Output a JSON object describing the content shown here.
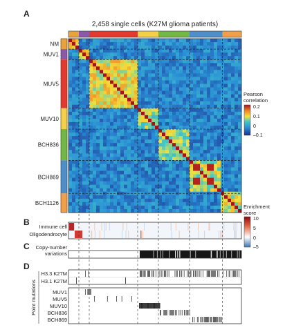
{
  "panels": {
    "a": {
      "letter": "A"
    },
    "b": {
      "letter": "B"
    },
    "c": {
      "letter": "C"
    },
    "d": {
      "letter": "D"
    }
  },
  "heatmap": {
    "title": "2,458 single cells (K27M glioma patients)",
    "rows": [
      {
        "label": "NM",
        "start": 0.0,
        "end": 0.06,
        "color": "#e8a33c"
      },
      {
        "label": "MUV1",
        "start": 0.06,
        "end": 0.12,
        "color": "#8a5aa8"
      },
      {
        "label": "MUV5",
        "start": 0.12,
        "end": 0.4,
        "color": "#e23a2e"
      },
      {
        "label": "MUV10",
        "start": 0.4,
        "end": 0.52,
        "color": "#f2d04a"
      },
      {
        "label": "BCH836",
        "start": 0.52,
        "end": 0.7,
        "color": "#73b844"
      },
      {
        "label": "BCH869",
        "start": 0.7,
        "end": 0.89,
        "color": "#4f8fc9"
      },
      {
        "label": "BCH1126",
        "start": 0.89,
        "end": 1.0,
        "color": "#f0a04a"
      }
    ],
    "colorbar": {
      "title_line1": "Pearson",
      "title_line2": "correlation",
      "ticks": [
        "0.2",
        "0.1",
        "0",
        "–0.1"
      ],
      "range": [
        -0.1,
        0.2
      ]
    }
  },
  "enrichment": {
    "tracks": [
      "Immune cell",
      "Oligodendrocyte"
    ],
    "colorbar": {
      "title_line1": "Enrichment",
      "title_line2": "score",
      "ticks": [
        "10",
        "5",
        "0",
        "–5"
      ],
      "range": [
        -5,
        10
      ]
    }
  },
  "cnv": {
    "label_line1": "Copy-number",
    "label_line2": "variations"
  },
  "mutations": {
    "side_label": "Point mutations",
    "histone_tracks": [
      "H3.3 K27M",
      "H3.1 K27M"
    ],
    "sample_tracks": [
      "MUV1",
      "MUV5",
      "MUV10",
      "BCH836",
      "BCH869"
    ]
  }
}
